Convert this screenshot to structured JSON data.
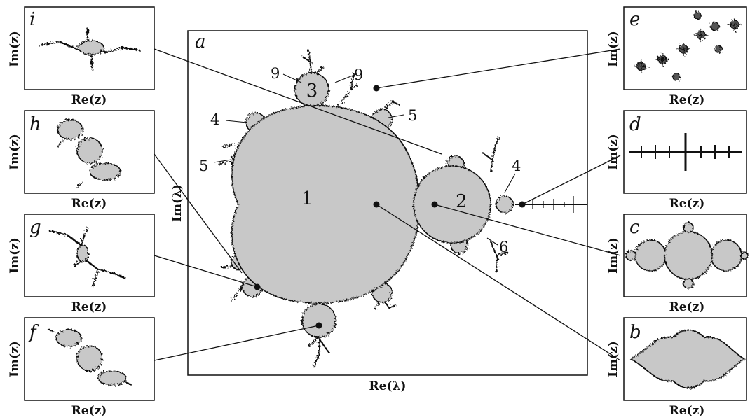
{
  "main": {
    "letter": "a",
    "xlabel": "Re(λ)",
    "ylabel": "Im(λ)",
    "regions": {
      "r1": "1",
      "r2": "2",
      "r3": "3"
    },
    "periods": {
      "p9a": "9",
      "p9b": "9",
      "p4a": "4",
      "p5a": "5",
      "p5b": "5",
      "p4b": "4",
      "p6": "6"
    }
  },
  "insets": {
    "i": {
      "letter": "i",
      "xlabel": "Re(z)",
      "ylabel": "Im(z)"
    },
    "h": {
      "letter": "h",
      "xlabel": "Re(z)",
      "ylabel": "Im(z)"
    },
    "g": {
      "letter": "g",
      "xlabel": "Re(z)",
      "ylabel": "Im(z)"
    },
    "f": {
      "letter": "f",
      "xlabel": "Re(z)",
      "ylabel": "Im(z)"
    },
    "e": {
      "letter": "e",
      "xlabel": "Re(z)",
      "ylabel": "Im(z)"
    },
    "d": {
      "letter": "d",
      "xlabel": "Re(z)",
      "ylabel": "Im(z)"
    },
    "c": {
      "letter": "c",
      "xlabel": "Re(z)",
      "ylabel": "Im(z)"
    },
    "b": {
      "letter": "b",
      "xlabel": "Re(z)",
      "ylabel": "Im(z)"
    }
  },
  "colors": {
    "fill": "#c8c8c8",
    "stroke": "#111111",
    "background": "#ffffff"
  }
}
